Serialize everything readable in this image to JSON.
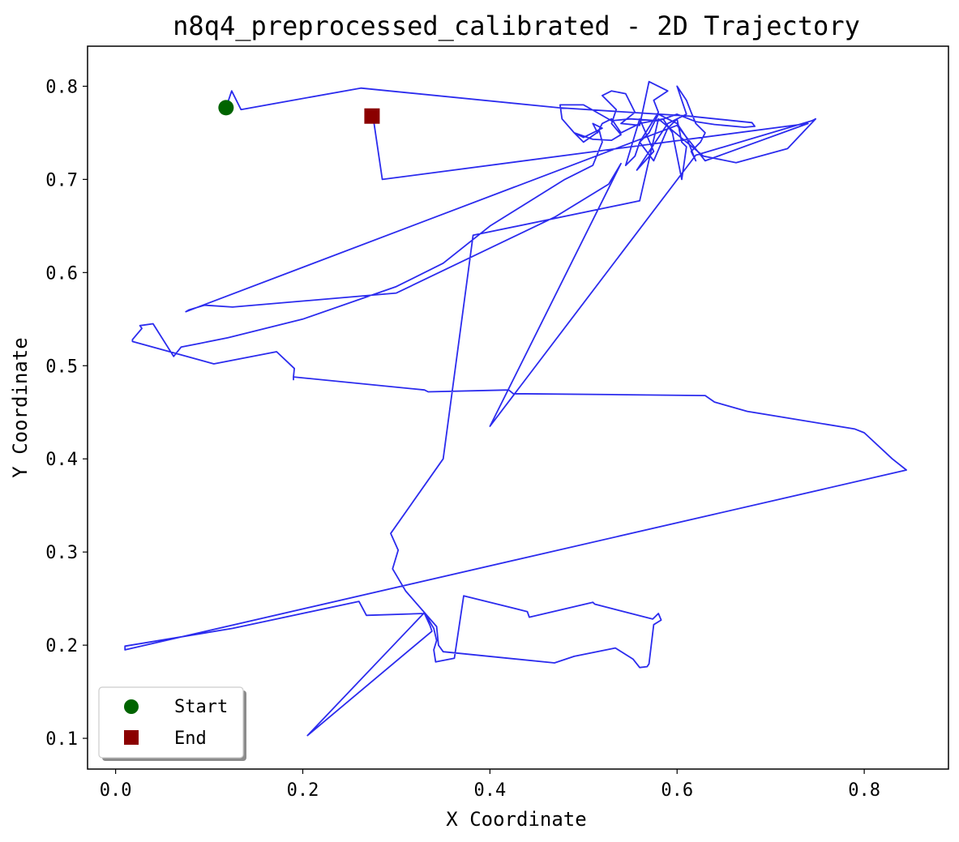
{
  "chart_data": {
    "type": "line",
    "title": "n8q4_preprocessed_calibrated - 2D Trajectory",
    "xlabel": "X Coordinate",
    "ylabel": "Y Coordinate",
    "xlim": [
      -0.03,
      0.89
    ],
    "ylim": [
      0.067,
      0.843
    ],
    "xticks": [
      0.0,
      0.2,
      0.4,
      0.6,
      0.8
    ],
    "yticks": [
      0.1,
      0.2,
      0.3,
      0.4,
      0.5,
      0.6,
      0.7,
      0.8
    ],
    "xtick_labels": [
      "0.0",
      "0.2",
      "0.4",
      "0.6",
      "0.8"
    ],
    "ytick_labels": [
      "0.1",
      "0.2",
      "0.3",
      "0.4",
      "0.5",
      "0.6",
      "0.7",
      "0.8"
    ],
    "grid": false,
    "legend_position": "lower-left",
    "series": [
      {
        "color": "#2b2bee",
        "points": [
          [
            0.118,
            0.777
          ],
          [
            0.124,
            0.795
          ],
          [
            0.134,
            0.775
          ],
          [
            0.262,
            0.798
          ],
          [
            0.473,
            0.777
          ],
          [
            0.612,
            0.768
          ],
          [
            0.68,
            0.761
          ],
          [
            0.683,
            0.757
          ],
          [
            0.672,
            0.756
          ],
          [
            0.64,
            0.759
          ],
          [
            0.62,
            0.762
          ],
          [
            0.6,
            0.77
          ],
          [
            0.58,
            0.763
          ],
          [
            0.55,
            0.765
          ],
          [
            0.53,
            0.763
          ],
          [
            0.5,
            0.78
          ],
          [
            0.475,
            0.78
          ],
          [
            0.477,
            0.765
          ],
          [
            0.49,
            0.75
          ],
          [
            0.51,
            0.743
          ],
          [
            0.53,
            0.742
          ],
          [
            0.54,
            0.748
          ],
          [
            0.53,
            0.76
          ],
          [
            0.535,
            0.775
          ],
          [
            0.52,
            0.79
          ],
          [
            0.53,
            0.795
          ],
          [
            0.545,
            0.792
          ],
          [
            0.555,
            0.772
          ],
          [
            0.54,
            0.76
          ],
          [
            0.56,
            0.758
          ],
          [
            0.57,
            0.805
          ],
          [
            0.59,
            0.795
          ],
          [
            0.575,
            0.785
          ],
          [
            0.58,
            0.772
          ],
          [
            0.56,
            0.74
          ],
          [
            0.575,
            0.72
          ],
          [
            0.59,
            0.755
          ],
          [
            0.6,
            0.765
          ],
          [
            0.61,
            0.77
          ],
          [
            0.6,
            0.8
          ],
          [
            0.61,
            0.785
          ],
          [
            0.615,
            0.772
          ],
          [
            0.62,
            0.76
          ],
          [
            0.63,
            0.75
          ],
          [
            0.625,
            0.74
          ],
          [
            0.615,
            0.73
          ],
          [
            0.62,
            0.72
          ],
          [
            0.61,
            0.745
          ],
          [
            0.6,
            0.76
          ],
          [
            0.58,
            0.77
          ],
          [
            0.57,
            0.75
          ],
          [
            0.56,
            0.74
          ],
          [
            0.555,
            0.725
          ],
          [
            0.545,
            0.715
          ],
          [
            0.56,
            0.765
          ],
          [
            0.575,
            0.73
          ],
          [
            0.557,
            0.71
          ],
          [
            0.59,
            0.76
          ],
          [
            0.6,
            0.765
          ],
          [
            0.605,
            0.74
          ],
          [
            0.61,
            0.735
          ],
          [
            0.605,
            0.7
          ],
          [
            0.595,
            0.75
          ],
          [
            0.585,
            0.765
          ],
          [
            0.56,
            0.76
          ],
          [
            0.54,
            0.75
          ],
          [
            0.53,
            0.765
          ],
          [
            0.52,
            0.76
          ],
          [
            0.515,
            0.75
          ],
          [
            0.51,
            0.76
          ],
          [
            0.52,
            0.755
          ],
          [
            0.5,
            0.745
          ],
          [
            0.49,
            0.75
          ],
          [
            0.5,
            0.74
          ],
          [
            0.517,
            0.752
          ],
          [
            0.52,
            0.74
          ],
          [
            0.51,
            0.715
          ],
          [
            0.48,
            0.7
          ],
          [
            0.4,
            0.65
          ],
          [
            0.35,
            0.61
          ],
          [
            0.3,
            0.585
          ],
          [
            0.2,
            0.55
          ],
          [
            0.12,
            0.53
          ],
          [
            0.09,
            0.524
          ],
          [
            0.07,
            0.52
          ],
          [
            0.062,
            0.51
          ],
          [
            0.04,
            0.545
          ],
          [
            0.026,
            0.543
          ],
          [
            0.028,
            0.54
          ],
          [
            0.018,
            0.528
          ],
          [
            0.018,
            0.526
          ],
          [
            0.105,
            0.502
          ],
          [
            0.172,
            0.515
          ],
          [
            0.191,
            0.497
          ],
          [
            0.19,
            0.488
          ],
          [
            0.19,
            0.485
          ],
          [
            0.19,
            0.488
          ],
          [
            0.33,
            0.474
          ],
          [
            0.334,
            0.472
          ],
          [
            0.42,
            0.474
          ],
          [
            0.425,
            0.47
          ],
          [
            0.53,
            0.469
          ],
          [
            0.63,
            0.468
          ],
          [
            0.64,
            0.461
          ],
          [
            0.675,
            0.451
          ],
          [
            0.79,
            0.432
          ],
          [
            0.8,
            0.428
          ],
          [
            0.83,
            0.4
          ],
          [
            0.845,
            0.388
          ],
          [
            0.01,
            0.195
          ],
          [
            0.01,
            0.199
          ],
          [
            0.125,
            0.218
          ],
          [
            0.26,
            0.247
          ],
          [
            0.268,
            0.232
          ],
          [
            0.33,
            0.234
          ],
          [
            0.336,
            0.221
          ],
          [
            0.338,
            0.215
          ],
          [
            0.205,
            0.103
          ],
          [
            0.33,
            0.235
          ],
          [
            0.34,
            0.218
          ],
          [
            0.343,
            0.205
          ],
          [
            0.34,
            0.195
          ],
          [
            0.342,
            0.182
          ],
          [
            0.362,
            0.186
          ],
          [
            0.372,
            0.253
          ],
          [
            0.44,
            0.236
          ],
          [
            0.442,
            0.23
          ],
          [
            0.51,
            0.246
          ],
          [
            0.512,
            0.244
          ],
          [
            0.574,
            0.228
          ],
          [
            0.58,
            0.234
          ],
          [
            0.583,
            0.227
          ],
          [
            0.575,
            0.222
          ],
          [
            0.57,
            0.18
          ],
          [
            0.568,
            0.177
          ],
          [
            0.56,
            0.176
          ],
          [
            0.553,
            0.185
          ],
          [
            0.534,
            0.197
          ],
          [
            0.49,
            0.188
          ],
          [
            0.469,
            0.181
          ],
          [
            0.35,
            0.193
          ],
          [
            0.345,
            0.2
          ],
          [
            0.343,
            0.22
          ],
          [
            0.31,
            0.258
          ],
          [
            0.296,
            0.282
          ],
          [
            0.302,
            0.302
          ],
          [
            0.294,
            0.32
          ],
          [
            0.35,
            0.4
          ],
          [
            0.382,
            0.64
          ],
          [
            0.56,
            0.677
          ],
          [
            0.58,
            0.765
          ],
          [
            0.628,
            0.725
          ],
          [
            0.663,
            0.718
          ],
          [
            0.718,
            0.733
          ],
          [
            0.748,
            0.765
          ],
          [
            0.744,
            0.763
          ],
          [
            0.62,
            0.726
          ],
          [
            0.4,
            0.435
          ],
          [
            0.54,
            0.717
          ],
          [
            0.527,
            0.695
          ],
          [
            0.47,
            0.66
          ],
          [
            0.3,
            0.578
          ],
          [
            0.125,
            0.563
          ],
          [
            0.095,
            0.565
          ],
          [
            0.0785,
            0.56
          ],
          [
            0.075,
            0.558
          ],
          [
            0.6,
            0.758
          ],
          [
            0.63,
            0.72
          ],
          [
            0.74,
            0.76
          ],
          [
            0.285,
            0.7
          ],
          [
            0.275,
            0.768
          ]
        ]
      }
    ],
    "markers": {
      "start": {
        "label": "Start",
        "x": 0.118,
        "y": 0.777,
        "color": "#006400",
        "shape": "circle"
      },
      "end": {
        "label": "End",
        "x": 0.274,
        "y": 0.768,
        "color": "#8b0000",
        "shape": "square"
      }
    }
  }
}
